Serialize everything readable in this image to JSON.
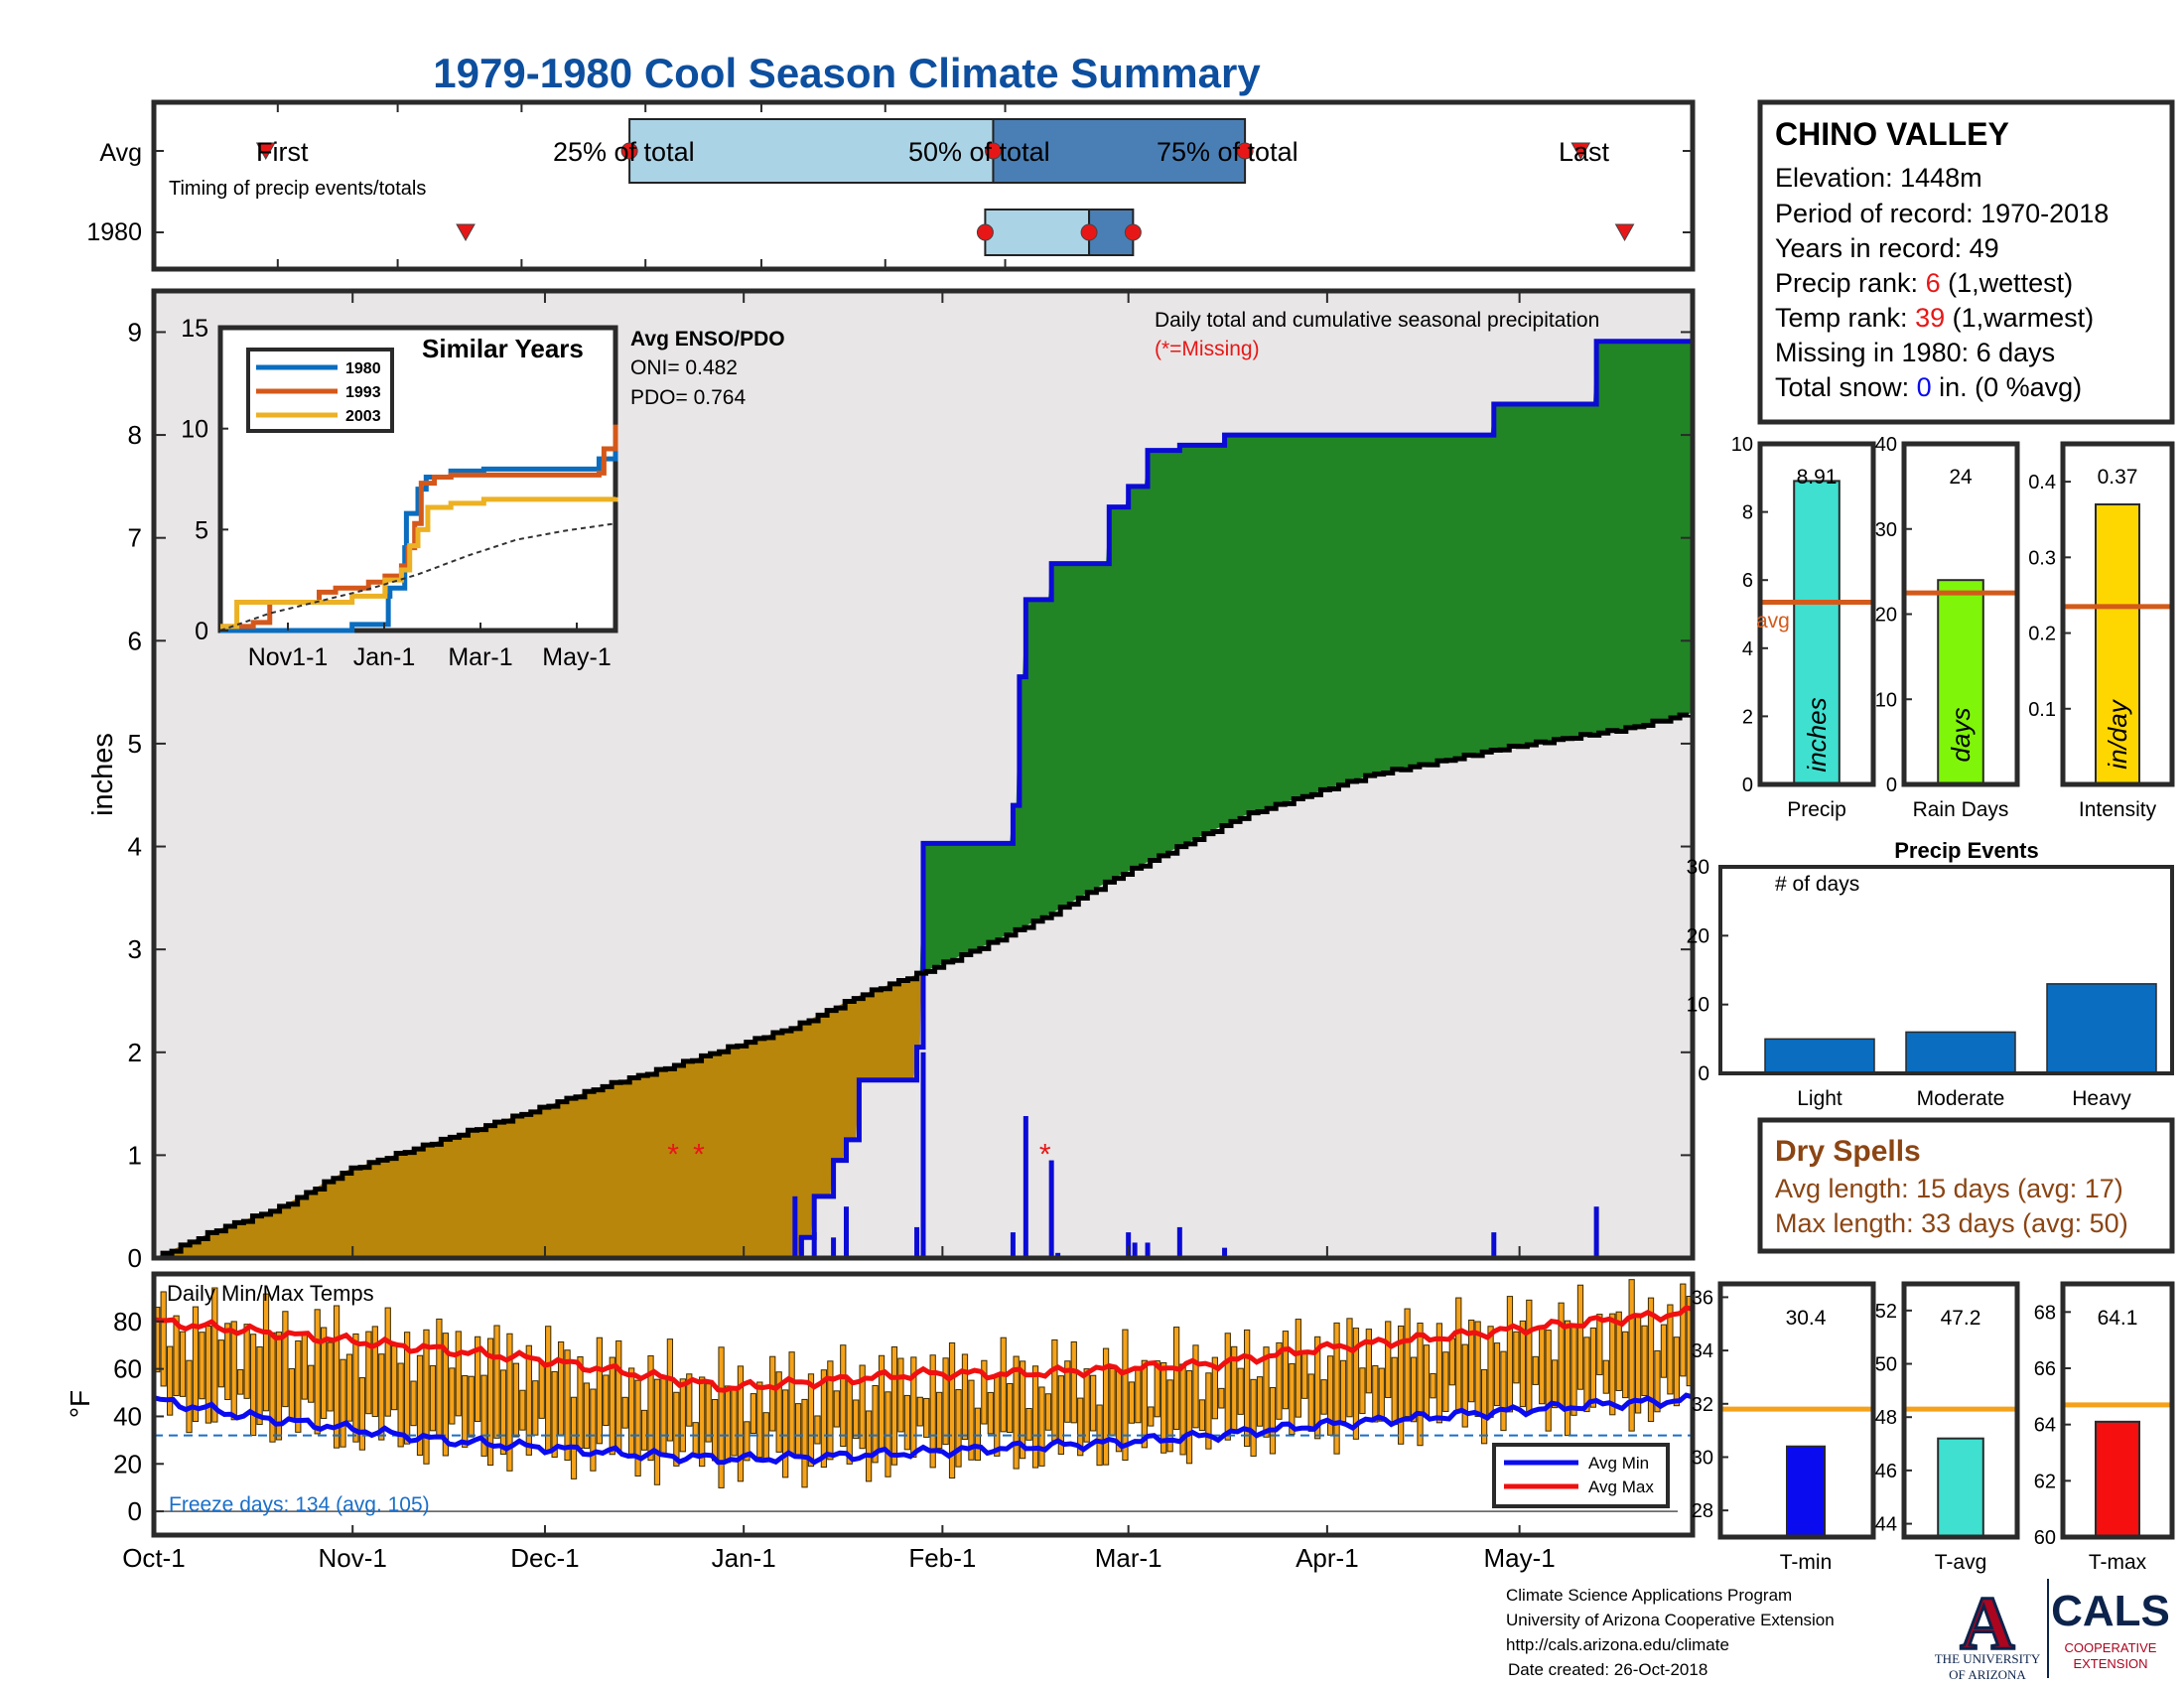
{
  "title": "1979-1980 Cool Season Climate Summary",
  "colors": {
    "title": "#0d4f9e",
    "light_blue": "#abd3e6",
    "mid_blue": "#4a7fb6",
    "marker_red": "#e81717",
    "green": "#218525",
    "brown": "#b8860b",
    "gray_fill": "#e8e6e6",
    "precip_blue": "#0b0bd6",
    "orange_bar": "#f5a21a",
    "max_red": "#f01010",
    "min_blue": "#0b0bf0",
    "dark_blue_bar": "#0a6dbf",
    "cyan": "#3fe0cf",
    "lime": "#7ff50a",
    "gold": "#ffd700",
    "avg_line_orange": "#d45a1a",
    "t_avg_line": "#f5a21a",
    "dry_spell_brown": "#8b4513",
    "ua_red": "#ab0520",
    "ua_navy": "#0c234b"
  },
  "timing": {
    "row_labels": [
      "Avg",
      "1980"
    ],
    "subtitle": "Timing of precip events/totals",
    "labels": {
      "first": "First",
      "p25": "25% of total",
      "p50": "50% of total",
      "p75": "75% of total",
      "last": "Last"
    },
    "avg": {
      "first": 28,
      "p25": 119,
      "p50": 210,
      "p75": 273,
      "last": 357
    },
    "y1980": {
      "first": 78,
      "p25": 208,
      "p50": 234,
      "p75": 245,
      "last": 368
    }
  },
  "station": {
    "name": "CHINO VALLEY",
    "elevation": "Elevation: 1448m",
    "period": "Period of record: 1970-2018",
    "years": "Years in record: 49",
    "precip_rank_label": "Precip rank: ",
    "precip_rank_value": "6",
    "precip_rank_note": " (1,wettest)",
    "temp_rank_label": "Temp rank: ",
    "temp_rank_value": "39",
    "temp_rank_note": " (1,warmest)",
    "missing": "Missing in 1980: 6 days",
    "snow_label": "Total snow: ",
    "snow_value": "0",
    "snow_note": " in. (0 %avg)"
  },
  "annotations": {
    "daily_total": "Daily total and cumulative seasonal precipitation",
    "missing": "(*=Missing)",
    "enso_title": "Avg ENSO/PDO",
    "oni": "ONI= 0.482",
    "pdo": "PDO= 0.764",
    "temps_title": "Daily Min/Max Temps",
    "freeze_days": "Freeze days: 134 (avg. 105)"
  },
  "footer": {
    "line1": "Climate Science Applications Program",
    "line2": "University of Arizona Cooperative Extension",
    "line3": "http://cals.arizona.edu/climate",
    "line4": "Date created: 26-Oct-2018",
    "ua_line1": "THE UNIVERSITY",
    "ua_line2": "OF ARIZONA",
    "cals": "CALS",
    "coop1": "COOPERATIVE",
    "coop2": "EXTENSION",
    "ua_letter": "A"
  },
  "chart_data": [
    {
      "id": "cumulative_precip",
      "type": "area",
      "ylabel": "inches",
      "ylim": [
        0,
        9.4
      ],
      "yticks": [
        0,
        1,
        2,
        3,
        4,
        5,
        6,
        7,
        8,
        9
      ],
      "x_tick_labels": [
        "Oct-1",
        "Nov-1",
        "Dec-1",
        "Jan-1",
        "Feb-1",
        "Mar-1",
        "Apr-1",
        "May-1"
      ],
      "x_tick_days": [
        0,
        31,
        61,
        92,
        123,
        152,
        183,
        213
      ],
      "series": [
        {
          "name": "Average cumulative",
          "x": [
            0,
            10,
            20,
            30,
            40,
            50,
            60,
            70,
            80,
            90,
            100,
            110,
            120,
            130,
            140,
            150,
            160,
            170,
            180,
            190,
            200,
            210,
            220,
            230,
            240
          ],
          "y": [
            0,
            0.28,
            0.5,
            0.85,
            1.05,
            1.25,
            1.45,
            1.67,
            1.85,
            2.05,
            2.25,
            2.55,
            2.78,
            3.05,
            3.35,
            3.7,
            4.0,
            4.3,
            4.5,
            4.7,
            4.82,
            4.95,
            5.05,
            5.15,
            5.3
          ]
        },
        {
          "name": "1980 cumulative",
          "x": [
            80,
            100,
            101,
            103,
            106,
            108,
            110,
            117,
            119,
            120,
            121,
            122,
            125,
            134,
            135,
            136,
            140,
            148,
            149,
            152,
            155,
            160,
            167,
            180,
            188,
            209,
            225,
            240
          ],
          "y": [
            0,
            0,
            0.2,
            0.6,
            0.95,
            1.15,
            1.73,
            1.73,
            2.05,
            4.03,
            4.03,
            4.03,
            4.03,
            4.4,
            5.65,
            6.4,
            6.75,
            6.75,
            7.3,
            7.5,
            7.85,
            7.9,
            8.0,
            8.0,
            8.0,
            8.3,
            8.91,
            8.91
          ]
        }
      ],
      "daily_precip": {
        "x": [
          100,
          101,
          103,
          106,
          108,
          119,
          120,
          134,
          136,
          140,
          141,
          152,
          153,
          155,
          160,
          167,
          209,
          225
        ],
        "y": [
          0.6,
          0.2,
          0.25,
          0.2,
          0.5,
          0.3,
          2.0,
          0.25,
          1.38,
          0.95,
          0.05,
          0.25,
          0.15,
          0.15,
          0.3,
          0.1,
          0.25,
          0.5
        ]
      },
      "missing_days": [
        81,
        85,
        139
      ]
    },
    {
      "id": "similar_years",
      "type": "line",
      "title": "Similar Years",
      "ylim": [
        0,
        15
      ],
      "yticks": [
        0,
        5,
        10,
        15
      ],
      "x_tick_labels": [
        "Nov1-1",
        "Jan-1",
        "Mar-1",
        "May-1"
      ],
      "series": [
        {
          "name": "1980",
          "x": [
            0,
            60,
            80,
            90,
            102,
            103,
            112,
            113,
            120,
            125,
            140,
            160,
            200,
            230,
            240
          ],
          "y": [
            0,
            0,
            0.3,
            0.3,
            1.7,
            2.1,
            4.1,
            5.8,
            7.0,
            7.6,
            7.9,
            8.0,
            8.0,
            8.5,
            8.9
          ]
        },
        {
          "name": "1993",
          "x": [
            0,
            20,
            30,
            50,
            60,
            70,
            90,
            100,
            110,
            114,
            118,
            122,
            130,
            140,
            160,
            200,
            230,
            233,
            240
          ],
          "y": [
            0.2,
            0.4,
            1.4,
            1.4,
            1.9,
            2.1,
            2.4,
            2.7,
            3.2,
            4.1,
            5.3,
            7.3,
            7.6,
            7.7,
            7.7,
            7.7,
            7.8,
            9.0,
            10.2
          ]
        },
        {
          "name": "2003",
          "x": [
            0,
            10,
            30,
            60,
            80,
            100,
            110,
            115,
            120,
            126,
            140,
            160,
            200,
            240
          ],
          "y": [
            0.2,
            1.4,
            1.4,
            1.4,
            1.7,
            2.5,
            3.0,
            4.2,
            5.0,
            6.1,
            6.3,
            6.5,
            6.5,
            6.6
          ]
        },
        {
          "name": "Average",
          "x": [
            0,
            30,
            60,
            90,
            120,
            150,
            180,
            210,
            240
          ],
          "y": [
            0,
            0.85,
            1.45,
            2.05,
            2.78,
            3.7,
            4.5,
            4.95,
            5.3
          ]
        }
      ]
    },
    {
      "id": "daily_temps",
      "type": "bar",
      "ylabel": "°F",
      "ylim": [
        -10,
        100
      ],
      "yticks": [
        0,
        20,
        40,
        60,
        80
      ],
      "freeze_line": 32,
      "x_tick_labels": [
        "Oct-1",
        "Nov-1",
        "Dec-1",
        "Jan-1",
        "Feb-1",
        "Mar-1",
        "Apr-1",
        "May-1"
      ],
      "x_tick_days": [
        0,
        31,
        61,
        92,
        123,
        152,
        183,
        213
      ],
      "legend": [
        "Avg Min",
        "Avg Max"
      ],
      "series": [
        {
          "name": "Avg Max",
          "x": [
            0,
            15,
            30,
            45,
            60,
            75,
            90,
            105,
            120,
            135,
            150,
            165,
            180,
            195,
            210,
            225,
            240
          ],
          "y": [
            80,
            76,
            72,
            68,
            64,
            58,
            52,
            55,
            58,
            58,
            60,
            62,
            68,
            72,
            76,
            80,
            84
          ]
        },
        {
          "name": "Avg Min",
          "x": [
            0,
            15,
            30,
            45,
            60,
            75,
            90,
            105,
            120,
            135,
            150,
            165,
            180,
            195,
            210,
            225,
            240
          ],
          "y": [
            47,
            40,
            35,
            30,
            27,
            24,
            22,
            23,
            25,
            27,
            29,
            32,
            36,
            39,
            42,
            45,
            47
          ]
        }
      ]
    },
    {
      "id": "season_totals",
      "type": "bar",
      "categories": [
        "Precip",
        "Rain Days",
        "Intensity"
      ],
      "values": [
        8.91,
        24,
        0.37
      ],
      "value_labels": [
        "8.91",
        "24",
        "0.37"
      ],
      "averages": [
        5.35,
        22.5,
        0.235
      ],
      "ylims": [
        [
          0,
          10
        ],
        [
          0,
          40
        ],
        [
          0,
          0.45
        ]
      ],
      "yticks": [
        [
          0,
          2,
          4,
          6,
          8,
          10
        ],
        [
          0,
          10,
          20,
          30,
          40
        ],
        [
          0.1,
          0.2,
          0.3,
          0.4
        ]
      ],
      "ytick_labels": [
        [
          "0",
          "2",
          "4",
          "6",
          "8",
          "10"
        ],
        [
          "0",
          "10",
          "20",
          "30",
          "40"
        ],
        [
          "0.1",
          "0.2",
          "0.3",
          "0.4"
        ]
      ],
      "bar_labels": [
        "inches",
        "days",
        "in/day"
      ],
      "avg_label": "avg"
    },
    {
      "id": "precip_events",
      "type": "bar",
      "title": "Precip Events",
      "ylabel": "# of days",
      "categories": [
        "Light",
        "Moderate",
        "Heavy"
      ],
      "values": [
        5,
        6,
        13
      ],
      "ylim": [
        0,
        30
      ],
      "yticks": [
        0,
        10,
        20,
        30
      ]
    },
    {
      "id": "dry_spells",
      "type": "table",
      "title": "Dry Spells",
      "rows": [
        "Avg length: 15 days (avg: 17)",
        "Max length: 33 days (avg: 50)"
      ]
    },
    {
      "id": "temp_summary",
      "type": "bar",
      "categories": [
        "T-min",
        "T-avg",
        "T-max"
      ],
      "values": [
        30.4,
        47.2,
        64.1
      ],
      "value_labels": [
        "30.4",
        "47.2",
        "64.1"
      ],
      "averages": [
        31.8,
        48.3,
        64.7
      ],
      "ylims": [
        [
          27,
          36.5
        ],
        [
          43.5,
          53
        ],
        [
          60,
          69
        ]
      ],
      "yticks": [
        [
          28,
          30,
          32,
          34,
          36
        ],
        [
          44,
          46,
          48,
          50,
          52
        ],
        [
          60,
          62,
          64,
          66,
          68
        ]
      ]
    }
  ]
}
